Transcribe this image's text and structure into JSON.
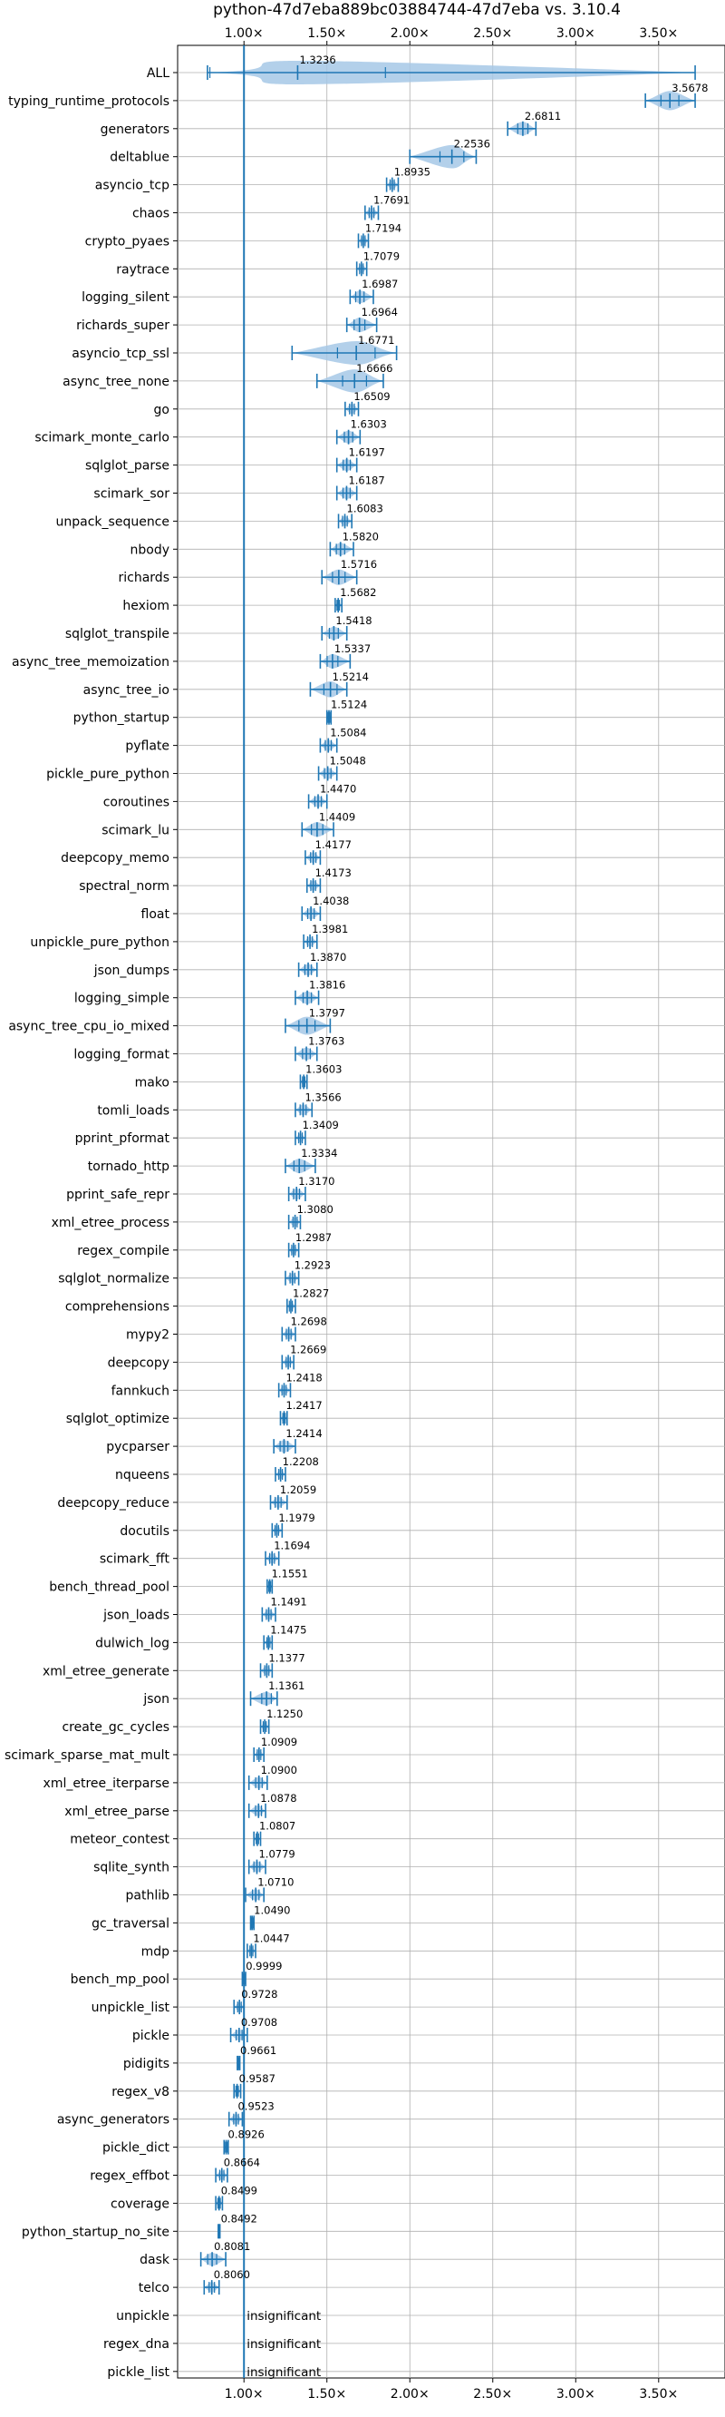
{
  "chart_data": {
    "type": "violin",
    "title": "python-47d7eba889bc03884744-47d7eba vs. 3.10.4",
    "xlabel": "",
    "ylabel": "",
    "xlim": [
      0.6,
      3.9
    ],
    "x_ticks": [
      1.0,
      1.5,
      2.0,
      2.5,
      3.0,
      3.5
    ],
    "x_tick_labels": [
      "1.00×",
      "1.50×",
      "2.00×",
      "2.50×",
      "3.00×",
      "3.50×"
    ],
    "x_ticks_top_and_bottom": true,
    "grid": true,
    "reference_line": 1.0,
    "accent_color": "#1f77b4",
    "violin_color": "#a6c8e6",
    "benchmarks": [
      {
        "name": "ALL",
        "value": 1.3236,
        "label": "1.3236",
        "low": 0.78,
        "high": 3.72
      },
      {
        "name": "typing_runtime_protocols",
        "value": 3.5678,
        "label": "3.5678",
        "low": 3.42,
        "high": 3.72
      },
      {
        "name": "generators",
        "value": 2.6811,
        "label": "2.6811",
        "low": 2.59,
        "high": 2.76
      },
      {
        "name": "deltablue",
        "value": 2.2536,
        "label": "2.2536",
        "low": 2.0,
        "high": 2.4
      },
      {
        "name": "asyncio_tcp",
        "value": 1.8935,
        "label": "1.8935",
        "low": 1.86,
        "high": 1.93
      },
      {
        "name": "chaos",
        "value": 1.7691,
        "label": "1.7691",
        "low": 1.73,
        "high": 1.81
      },
      {
        "name": "crypto_pyaes",
        "value": 1.7194,
        "label": "1.7194",
        "low": 1.69,
        "high": 1.75
      },
      {
        "name": "raytrace",
        "value": 1.7079,
        "label": "1.7079",
        "low": 1.68,
        "high": 1.74
      },
      {
        "name": "logging_silent",
        "value": 1.6987,
        "label": "1.6987",
        "low": 1.64,
        "high": 1.78
      },
      {
        "name": "richards_super",
        "value": 1.6964,
        "label": "1.6964",
        "low": 1.62,
        "high": 1.8
      },
      {
        "name": "asyncio_tcp_ssl",
        "value": 1.6771,
        "label": "1.6771",
        "low": 1.29,
        "high": 1.92
      },
      {
        "name": "async_tree_none",
        "value": 1.6666,
        "label": "1.6666",
        "low": 1.44,
        "high": 1.84
      },
      {
        "name": "go",
        "value": 1.6509,
        "label": "1.6509",
        "low": 1.61,
        "high": 1.69
      },
      {
        "name": "scimark_monte_carlo",
        "value": 1.6303,
        "label": "1.6303",
        "low": 1.56,
        "high": 1.7
      },
      {
        "name": "sqlglot_parse",
        "value": 1.6197,
        "label": "1.6197",
        "low": 1.56,
        "high": 1.68
      },
      {
        "name": "scimark_sor",
        "value": 1.6187,
        "label": "1.6187",
        "low": 1.56,
        "high": 1.68
      },
      {
        "name": "unpack_sequence",
        "value": 1.6083,
        "label": "1.6083",
        "low": 1.57,
        "high": 1.65
      },
      {
        "name": "nbody",
        "value": 1.582,
        "label": "1.5820",
        "low": 1.52,
        "high": 1.66
      },
      {
        "name": "richards",
        "value": 1.5716,
        "label": "1.5716",
        "low": 1.47,
        "high": 1.68
      },
      {
        "name": "hexiom",
        "value": 1.5682,
        "label": "1.5682",
        "low": 1.55,
        "high": 1.59
      },
      {
        "name": "sqlglot_transpile",
        "value": 1.5418,
        "label": "1.5418",
        "low": 1.47,
        "high": 1.62
      },
      {
        "name": "async_tree_memoization",
        "value": 1.5337,
        "label": "1.5337",
        "low": 1.46,
        "high": 1.64
      },
      {
        "name": "async_tree_io",
        "value": 1.5214,
        "label": "1.5214",
        "low": 1.4,
        "high": 1.62
      },
      {
        "name": "python_startup",
        "value": 1.5124,
        "label": "1.5124",
        "low": 1.5,
        "high": 1.525
      },
      {
        "name": "pyflate",
        "value": 1.5084,
        "label": "1.5084",
        "low": 1.46,
        "high": 1.56
      },
      {
        "name": "pickle_pure_python",
        "value": 1.5048,
        "label": "1.5048",
        "low": 1.45,
        "high": 1.56
      },
      {
        "name": "coroutines",
        "value": 1.447,
        "label": "1.4470",
        "low": 1.39,
        "high": 1.5
      },
      {
        "name": "scimark_lu",
        "value": 1.4409,
        "label": "1.4409",
        "low": 1.35,
        "high": 1.54
      },
      {
        "name": "deepcopy_memo",
        "value": 1.4177,
        "label": "1.4177",
        "low": 1.37,
        "high": 1.46
      },
      {
        "name": "spectral_norm",
        "value": 1.4173,
        "label": "1.4173",
        "low": 1.38,
        "high": 1.46
      },
      {
        "name": "float",
        "value": 1.4038,
        "label": "1.4038",
        "low": 1.35,
        "high": 1.46
      },
      {
        "name": "unpickle_pure_python",
        "value": 1.3981,
        "label": "1.3981",
        "low": 1.36,
        "high": 1.44
      },
      {
        "name": "json_dumps",
        "value": 1.387,
        "label": "1.3870",
        "low": 1.33,
        "high": 1.44
      },
      {
        "name": "logging_simple",
        "value": 1.3816,
        "label": "1.3816",
        "low": 1.31,
        "high": 1.45
      },
      {
        "name": "async_tree_cpu_io_mixed",
        "value": 1.3797,
        "label": "1.3797",
        "low": 1.25,
        "high": 1.52
      },
      {
        "name": "logging_format",
        "value": 1.3763,
        "label": "1.3763",
        "low": 1.31,
        "high": 1.44
      },
      {
        "name": "mako",
        "value": 1.3603,
        "label": "1.3603",
        "low": 1.34,
        "high": 1.38
      },
      {
        "name": "tomli_loads",
        "value": 1.3566,
        "label": "1.3566",
        "low": 1.31,
        "high": 1.41
      },
      {
        "name": "pprint_pformat",
        "value": 1.3409,
        "label": "1.3409",
        "low": 1.31,
        "high": 1.37
      },
      {
        "name": "tornado_http",
        "value": 1.3334,
        "label": "1.3334",
        "low": 1.25,
        "high": 1.43
      },
      {
        "name": "pprint_safe_repr",
        "value": 1.317,
        "label": "1.3170",
        "low": 1.27,
        "high": 1.37
      },
      {
        "name": "xml_etree_process",
        "value": 1.308,
        "label": "1.3080",
        "low": 1.27,
        "high": 1.34
      },
      {
        "name": "regex_compile",
        "value": 1.2987,
        "label": "1.2987",
        "low": 1.27,
        "high": 1.33
      },
      {
        "name": "sqlglot_normalize",
        "value": 1.2923,
        "label": "1.2923",
        "low": 1.25,
        "high": 1.33
      },
      {
        "name": "comprehensions",
        "value": 1.2827,
        "label": "1.2827",
        "low": 1.26,
        "high": 1.31
      },
      {
        "name": "mypy2",
        "value": 1.2698,
        "label": "1.2698",
        "low": 1.23,
        "high": 1.31
      },
      {
        "name": "deepcopy",
        "value": 1.2669,
        "label": "1.2669",
        "low": 1.23,
        "high": 1.3
      },
      {
        "name": "fannkuch",
        "value": 1.2418,
        "label": "1.2418",
        "low": 1.21,
        "high": 1.28
      },
      {
        "name": "sqlglot_optimize",
        "value": 1.2417,
        "label": "1.2417",
        "low": 1.22,
        "high": 1.26
      },
      {
        "name": "pycparser",
        "value": 1.2414,
        "label": "1.2414",
        "low": 1.18,
        "high": 1.31
      },
      {
        "name": "nqueens",
        "value": 1.2208,
        "label": "1.2208",
        "low": 1.19,
        "high": 1.25
      },
      {
        "name": "deepcopy_reduce",
        "value": 1.2059,
        "label": "1.2059",
        "low": 1.16,
        "high": 1.26
      },
      {
        "name": "docutils",
        "value": 1.1979,
        "label": "1.1979",
        "low": 1.17,
        "high": 1.23
      },
      {
        "name": "scimark_fft",
        "value": 1.1694,
        "label": "1.1694",
        "low": 1.13,
        "high": 1.21
      },
      {
        "name": "bench_thread_pool",
        "value": 1.1551,
        "label": "1.1551",
        "low": 1.14,
        "high": 1.17
      },
      {
        "name": "json_loads",
        "value": 1.1491,
        "label": "1.1491",
        "low": 1.11,
        "high": 1.19
      },
      {
        "name": "dulwich_log",
        "value": 1.1475,
        "label": "1.1475",
        "low": 1.12,
        "high": 1.17
      },
      {
        "name": "xml_etree_generate",
        "value": 1.1377,
        "label": "1.1377",
        "low": 1.1,
        "high": 1.17
      },
      {
        "name": "json",
        "value": 1.1361,
        "label": "1.1361",
        "low": 1.04,
        "high": 1.2
      },
      {
        "name": "create_gc_cycles",
        "value": 1.125,
        "label": "1.1250",
        "low": 1.1,
        "high": 1.15
      },
      {
        "name": "scimark_sparse_mat_mult",
        "value": 1.0909,
        "label": "1.0909",
        "low": 1.06,
        "high": 1.12
      },
      {
        "name": "xml_etree_iterparse",
        "value": 1.09,
        "label": "1.0900",
        "low": 1.03,
        "high": 1.14
      },
      {
        "name": "xml_etree_parse",
        "value": 1.0878,
        "label": "1.0878",
        "low": 1.03,
        "high": 1.13
      },
      {
        "name": "meteor_contest",
        "value": 1.0807,
        "label": "1.0807",
        "low": 1.06,
        "high": 1.1
      },
      {
        "name": "sqlite_synth",
        "value": 1.0779,
        "label": "1.0779",
        "low": 1.03,
        "high": 1.13
      },
      {
        "name": "pathlib",
        "value": 1.071,
        "label": "1.0710",
        "low": 1.01,
        "high": 1.12
      },
      {
        "name": "gc_traversal",
        "value": 1.049,
        "label": "1.0490",
        "low": 1.04,
        "high": 1.06
      },
      {
        "name": "mdp",
        "value": 1.0447,
        "label": "1.0447",
        "low": 1.02,
        "high": 1.07
      },
      {
        "name": "bench_mp_pool",
        "value": 0.9999,
        "label": "0.9999",
        "low": 0.99,
        "high": 1.01
      },
      {
        "name": "unpickle_list",
        "value": 0.9728,
        "label": "0.9728",
        "low": 0.94,
        "high": 1.0
      },
      {
        "name": "pickle",
        "value": 0.9708,
        "label": "0.9708",
        "low": 0.92,
        "high": 1.02
      },
      {
        "name": "pidigits",
        "value": 0.9661,
        "label": "0.9661",
        "low": 0.96,
        "high": 0.975
      },
      {
        "name": "regex_v8",
        "value": 0.9587,
        "label": "0.9587",
        "low": 0.94,
        "high": 0.98
      },
      {
        "name": "async_generators",
        "value": 0.9523,
        "label": "0.9523",
        "low": 0.91,
        "high": 0.99
      },
      {
        "name": "pickle_dict",
        "value": 0.8926,
        "label": "0.8926",
        "low": 0.88,
        "high": 0.905
      },
      {
        "name": "regex_effbot",
        "value": 0.8664,
        "label": "0.8664",
        "low": 0.83,
        "high": 0.9
      },
      {
        "name": "coverage",
        "value": 0.8499,
        "label": "0.8499",
        "low": 0.83,
        "high": 0.87
      },
      {
        "name": "python_startup_no_site",
        "value": 0.8492,
        "label": "0.8492",
        "low": 0.845,
        "high": 0.855
      },
      {
        "name": "dask",
        "value": 0.8081,
        "label": "0.8081",
        "low": 0.74,
        "high": 0.89
      },
      {
        "name": "telco",
        "value": 0.806,
        "label": "0.8060",
        "low": 0.76,
        "high": 0.85
      },
      {
        "name": "unpickle",
        "value": null,
        "label": "insignificant",
        "low": null,
        "high": null
      },
      {
        "name": "regex_dna",
        "value": null,
        "label": "insignificant",
        "low": null,
        "high": null
      },
      {
        "name": "pickle_list",
        "value": null,
        "label": "insignificant",
        "low": null,
        "high": null
      }
    ]
  }
}
